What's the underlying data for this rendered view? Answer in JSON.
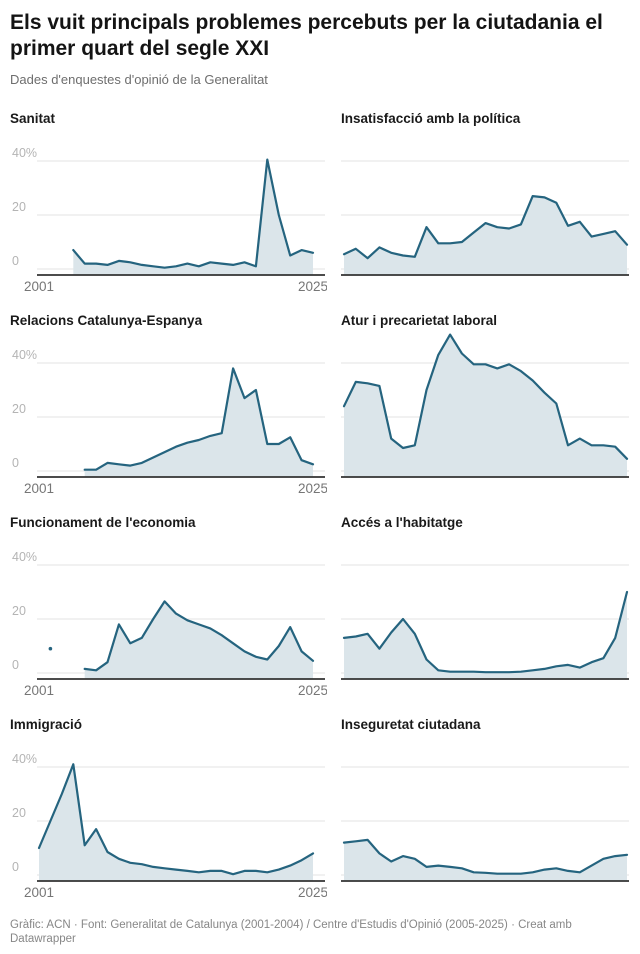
{
  "header": {
    "title": "Els vuit principals problemes percebuts per la ciutadania el primer quart del segle XXI",
    "subtitle": "Dades d'enquestes d'opinió de la Generalitat"
  },
  "footer": {
    "text": "Gràfic: ACN · Font: Generalitat de Catalunya (2001-2004) / Centre d'Estudis d'Opinió (2005-2025) · Creat amb Datawrapper"
  },
  "palette": {
    "line": "#25647f",
    "fill": "#dbe5ea",
    "grid": "#e3e3e3",
    "axis": "#333333",
    "y_tick": "#b4b4b4",
    "x_tick": "#767676"
  },
  "axes": {
    "x_range": [
      2001,
      2025
    ],
    "x_ticks": [
      "2001",
      "2025"
    ],
    "y_gridlines": [
      0,
      20,
      40
    ],
    "y_tick_labels": [
      "0",
      "20",
      "40%"
    ],
    "unit": "%"
  },
  "chart_data": [
    {
      "type": "area",
      "title": "Sanitat",
      "axis_labels": true,
      "start_year": 2004,
      "values": [
        7,
        2,
        2,
        1.5,
        3,
        2.5,
        1.5,
        1,
        0.5,
        1,
        2,
        1,
        2.5,
        2,
        1.5,
        2.5,
        1,
        40.5,
        20,
        5,
        7,
        6
      ]
    },
    {
      "type": "area",
      "title": "Insatisfacció amb la política",
      "axis_labels": false,
      "start_year": 2001,
      "values": [
        5.5,
        7.5,
        4,
        8,
        6,
        5,
        4.5,
        15.5,
        9.5,
        9.5,
        10,
        13.5,
        17,
        15.5,
        15,
        16.5,
        27,
        26.5,
        24.5,
        16,
        17.5,
        12,
        13,
        14,
        9
      ]
    },
    {
      "type": "area",
      "title": "Relacions Catalunya-Espanya",
      "axis_labels": true,
      "start_year": 2005,
      "values": [
        0.5,
        0.5,
        3,
        2.5,
        2,
        3,
        5,
        7,
        9,
        10.5,
        11.5,
        13,
        14,
        38,
        27,
        30,
        10,
        10,
        12.5,
        4,
        2.5
      ]
    },
    {
      "type": "area",
      "title": "Atur i precarietat laboral",
      "axis_labels": false,
      "start_year": 2001,
      "values": [
        24,
        33,
        32.5,
        31.5,
        12,
        8.5,
        9.5,
        30,
        43,
        50.5,
        43.5,
        39.5,
        39.5,
        38,
        39.5,
        37,
        33.5,
        29,
        25,
        9.5,
        12,
        9.5,
        9.5,
        9,
        4.5
      ]
    },
    {
      "type": "area",
      "title": "Funcionament de l'economia",
      "axis_labels": true,
      "start_year": 2005,
      "values": [
        1.5,
        1,
        4,
        18,
        11,
        13,
        20,
        26.5,
        22,
        19.5,
        18,
        16.5,
        14,
        11,
        8,
        6,
        5,
        10,
        17,
        8,
        4.5
      ],
      "isolated_points": [
        {
          "year": 2002,
          "value": 9
        }
      ]
    },
    {
      "type": "area",
      "title": "Accés a l'habitatge",
      "axis_labels": false,
      "start_year": 2001,
      "values": [
        13,
        13.5,
        14.5,
        9,
        15,
        20,
        14.5,
        5,
        1,
        0.5,
        0.5,
        0.5,
        0.3,
        0.3,
        0.3,
        0.5,
        1,
        1.5,
        2.5,
        3,
        2,
        4,
        5.5,
        13,
        30
      ]
    },
    {
      "type": "area",
      "title": "Immigració",
      "axis_labels": true,
      "start_year": 2001,
      "values": [
        10,
        20,
        30,
        41,
        11,
        17,
        8.5,
        6,
        4.5,
        4,
        3,
        2.5,
        2,
        1.5,
        1,
        1.5,
        1.5,
        0.3,
        1.5,
        1.5,
        1,
        2,
        3.5,
        5.5,
        8
      ]
    },
    {
      "type": "area",
      "title": "Inseguretat ciutadana",
      "axis_labels": false,
      "start_year": 2001,
      "values": [
        12,
        12.5,
        13,
        8,
        5,
        7,
        6,
        3,
        3.5,
        3,
        2.5,
        1,
        0.8,
        0.5,
        0.5,
        0.5,
        1,
        2,
        2.5,
        1.5,
        1,
        3.5,
        6,
        7,
        7.5
      ]
    }
  ]
}
